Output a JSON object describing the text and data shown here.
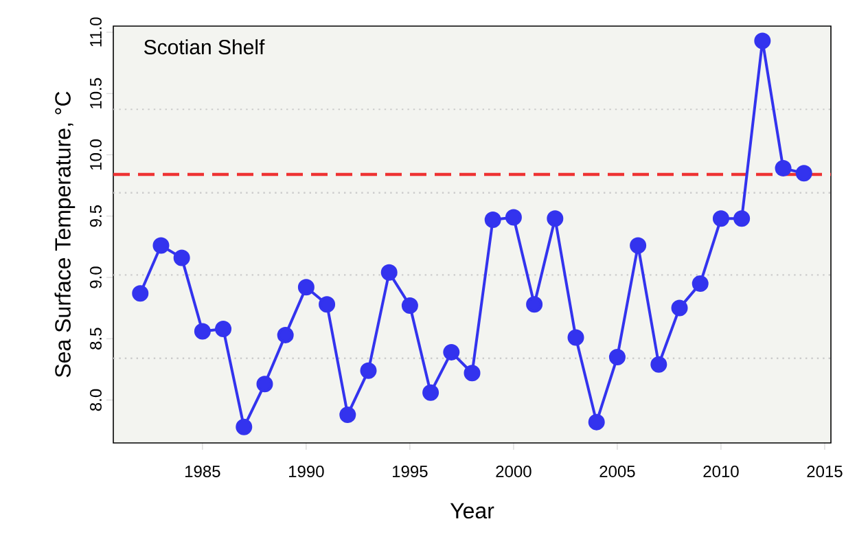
{
  "chart_data": {
    "type": "line",
    "xlabel": "Year",
    "ylabel": "Sea Surface Temperature, °C",
    "annotations": [
      "Scotian Shelf"
    ],
    "x": [
      1982,
      1983,
      1984,
      1985,
      1986,
      1987,
      1988,
      1989,
      1990,
      1991,
      1992,
      1993,
      1994,
      1995,
      1996,
      1997,
      1998,
      1999,
      2000,
      2001,
      2002,
      2003,
      2004,
      2005,
      2006,
      2007,
      2008,
      2009,
      2010,
      2011,
      2012,
      2013,
      2014
    ],
    "series": [
      {
        "color": "#3333ee",
        "values": [
          8.87,
          9.26,
          9.16,
          8.56,
          8.58,
          7.78,
          8.13,
          8.53,
          8.92,
          8.78,
          7.88,
          8.24,
          9.04,
          8.77,
          8.06,
          8.39,
          8.22,
          9.47,
          9.49,
          8.78,
          9.48,
          8.51,
          7.82,
          8.35,
          9.26,
          8.29,
          8.75,
          8.95,
          9.48,
          9.48,
          10.93,
          9.89,
          9.85
        ]
      }
    ],
    "marker": "circle",
    "line_style": "solid",
    "xlim": [
      1980.7,
      2015.3
    ],
    "ylim": [
      7.65,
      11.05
    ],
    "xticks": [
      1985,
      1990,
      1995,
      2000,
      2005,
      2010,
      2015
    ],
    "yticks": [
      {
        "value": 8,
        "label": "8.0"
      },
      {
        "value": 8.5,
        "label": "8.5"
      },
      {
        "value": 9,
        "label": "9.0"
      },
      {
        "value": 9.5,
        "label": "9.5"
      },
      {
        "value": 10,
        "label": "10.0"
      },
      {
        "value": 10.5,
        "label": "10.5"
      },
      {
        "value": 11,
        "label": "11.0"
      }
    ],
    "ref_lines": [
      {
        "axis": "y",
        "value": 9.84,
        "color": "#ee3333",
        "line_style": "dashed"
      },
      {
        "axis": "y",
        "value": 8.34,
        "color": "#cccccc",
        "line_style": "dotted"
      },
      {
        "axis": "y",
        "value": 9.02,
        "color": "#cccccc",
        "line_style": "dotted"
      },
      {
        "axis": "y",
        "value": 9.69,
        "color": "#cccccc",
        "line_style": "dotted"
      },
      {
        "axis": "y",
        "value": 10.37,
        "color": "#cccccc",
        "line_style": "dotted"
      }
    ],
    "grid": false
  }
}
